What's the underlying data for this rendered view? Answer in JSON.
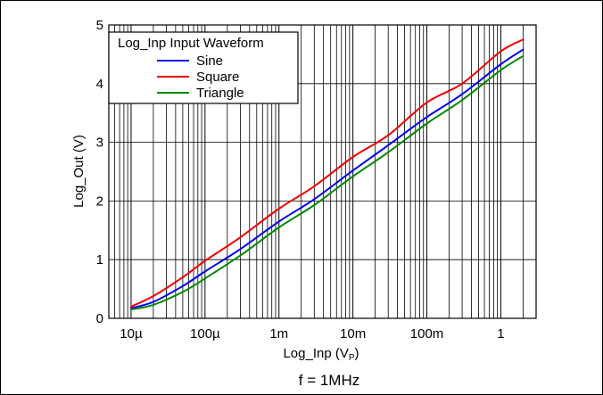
{
  "chart_data": {
    "type": "line",
    "xscale": "log",
    "xlim": [
      5e-06,
      3
    ],
    "ylim": [
      0,
      5
    ],
    "xticks": [
      1e-05,
      0.0001,
      0.001,
      0.01,
      0.1,
      1
    ],
    "xtick_labels": [
      "10µ",
      "100µ",
      "1m",
      "10m",
      "100m",
      "1"
    ],
    "yticks": [
      0,
      1,
      2,
      3,
      4,
      5
    ],
    "ytick_labels": [
      "0",
      "1",
      "2",
      "3",
      "4",
      "5"
    ],
    "xlabel": "Log_Inp (V",
    "xlabel_sub": "P",
    "xlabel_close": ")",
    "ylabel": "Log_Out (V)",
    "caption": "f = 1MHz",
    "grid": true,
    "legend": {
      "title": "Log_Inp Input Waveform",
      "placement": "top-left"
    },
    "series": [
      {
        "name": "Sine",
        "color": "#0000ee",
        "x": [
          1e-05,
          2e-05,
          5e-05,
          0.0001,
          0.0003,
          0.001,
          0.003,
          0.01,
          0.03,
          0.1,
          0.3,
          1,
          2
        ],
        "y": [
          0.17,
          0.28,
          0.55,
          0.8,
          1.18,
          1.65,
          2.03,
          2.52,
          2.95,
          3.43,
          3.82,
          4.33,
          4.58
        ]
      },
      {
        "name": "Square",
        "color": "#ee0000",
        "x": [
          1e-05,
          2e-05,
          5e-05,
          0.0001,
          0.0003,
          0.001,
          0.003,
          0.01,
          0.03,
          0.1,
          0.3,
          1,
          2
        ],
        "y": [
          0.2,
          0.38,
          0.7,
          0.98,
          1.38,
          1.87,
          2.25,
          2.75,
          3.12,
          3.68,
          4.0,
          4.55,
          4.75
        ]
      },
      {
        "name": "Triangle",
        "color": "#008800",
        "x": [
          1e-05,
          2e-05,
          5e-05,
          0.0001,
          0.0003,
          0.001,
          0.003,
          0.01,
          0.03,
          0.1,
          0.3,
          1,
          2
        ],
        "y": [
          0.15,
          0.23,
          0.45,
          0.68,
          1.07,
          1.55,
          1.93,
          2.42,
          2.83,
          3.32,
          3.72,
          4.23,
          4.47
        ]
      }
    ]
  }
}
